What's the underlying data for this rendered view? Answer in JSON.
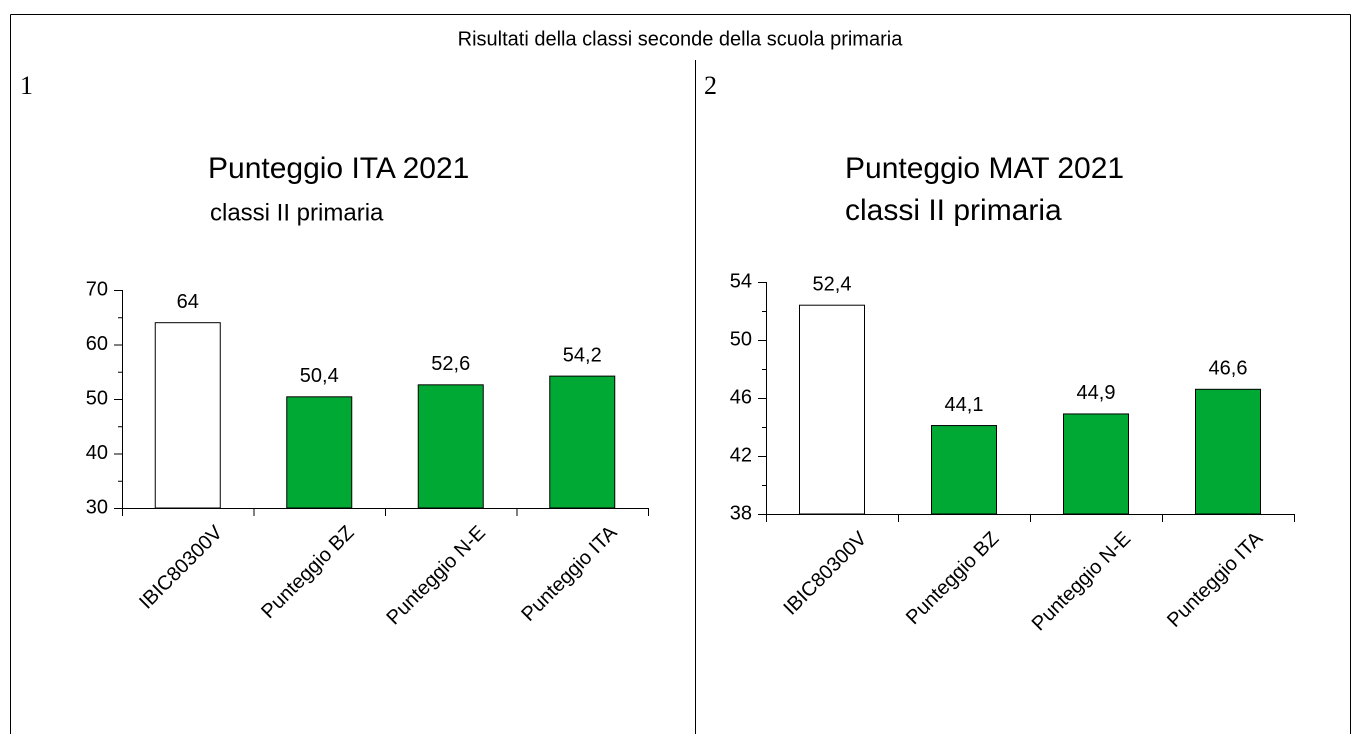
{
  "title": "Risultati della classi seconde della scuola primaria",
  "panels": [
    "1",
    "2"
  ],
  "chart_data": [
    {
      "type": "bar",
      "title": "Punteggio ITA 2021",
      "subtitle": "classi II primaria",
      "categories": [
        "IBIC80300V",
        "Punteggio BZ",
        "Punteggio N-E",
        "Punteggio ITA"
      ],
      "values": [
        64,
        50.4,
        52.6,
        54.2
      ],
      "value_labels": [
        "64",
        "50,4",
        "52,6",
        "54,2"
      ],
      "colors": [
        "#ffffff",
        "#00a933",
        "#00a933",
        "#00a933"
      ],
      "ylim": [
        30,
        70
      ],
      "yticks": [
        30,
        40,
        50,
        60,
        70
      ]
    },
    {
      "type": "bar",
      "title": "Punteggio MAT 2021",
      "subtitle": "classi II primaria",
      "categories": [
        "IBIC80300V",
        "Punteggio BZ",
        "Punteggio N-E",
        "Punteggio ITA"
      ],
      "values": [
        52.4,
        44.1,
        44.9,
        46.6
      ],
      "value_labels": [
        "52,4",
        "44,1",
        "44,9",
        "46,6"
      ],
      "colors": [
        "#ffffff",
        "#00a933",
        "#00a933",
        "#00a933"
      ],
      "ylim": [
        38,
        54
      ],
      "yticks": [
        38,
        42,
        46,
        50,
        54
      ]
    }
  ]
}
